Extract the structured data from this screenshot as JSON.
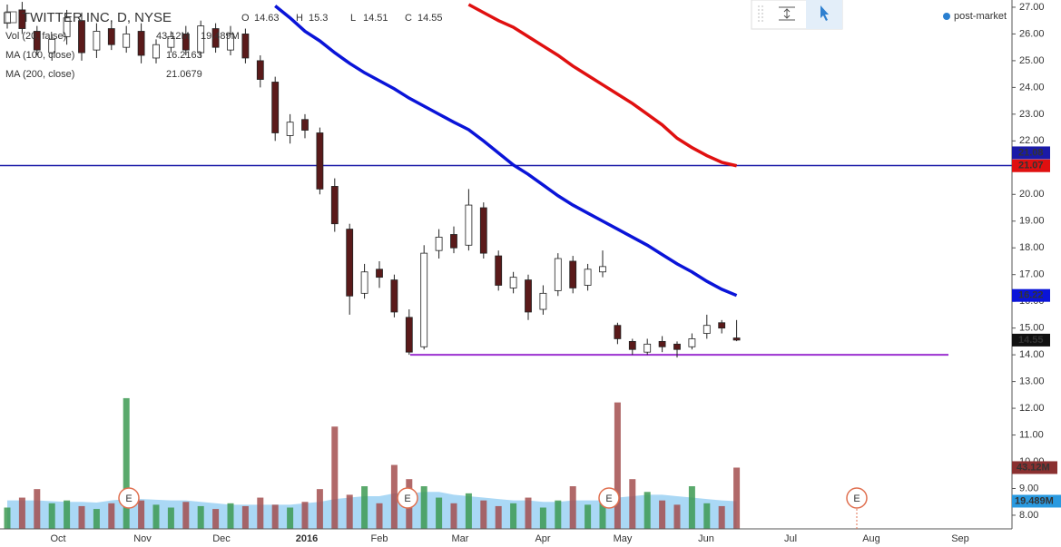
{
  "chart_data": {
    "type": "candlestick",
    "title": "TWITTER INC, D, NYSE",
    "ohlc_legend": [
      {
        "label": "O",
        "value": 14.63
      },
      {
        "label": "H",
        "value": 15.3
      },
      {
        "label": "L",
        "value": 14.51
      },
      {
        "label": "C",
        "value": 14.55
      }
    ],
    "open": [
      26.4,
      26.9,
      26.1,
      25.3,
      25.9,
      26.5,
      25.4,
      26.2,
      25.5,
      26.1,
      25.1,
      25.5,
      26.0,
      25.3,
      26.2,
      25.4,
      26.0,
      25.0,
      24.2,
      22.2,
      22.8,
      22.3,
      20.3,
      18.7,
      16.3,
      17.2,
      16.8,
      15.4,
      14.3,
      17.9,
      18.5,
      18.1,
      19.5,
      17.7,
      16.5,
      16.8,
      15.7,
      16.4,
      17.5,
      16.6,
      17.1,
      15.1,
      14.5,
      14.1,
      14.5,
      14.4,
      14.3,
      14.8,
      15.2,
      14.63
    ],
    "high": [
      27.1,
      27.2,
      26.3,
      26.0,
      26.9,
      26.8,
      26.4,
      26.5,
      26.3,
      26.4,
      25.8,
      26.1,
      26.3,
      26.5,
      26.4,
      26.3,
      26.2,
      25.2,
      24.4,
      23.0,
      23.0,
      22.5,
      20.6,
      18.9,
      17.4,
      17.5,
      17.0,
      15.7,
      18.1,
      18.7,
      18.8,
      20.2,
      19.7,
      17.9,
      17.1,
      17.0,
      16.6,
      17.8,
      17.7,
      17.4,
      17.9,
      15.2,
      14.6,
      14.6,
      14.7,
      14.5,
      14.8,
      15.5,
      15.3,
      15.3
    ],
    "low": [
      26.2,
      26.0,
      25.2,
      25.0,
      25.6,
      25.0,
      25.1,
      25.4,
      25.3,
      24.9,
      24.9,
      25.3,
      25.2,
      25.1,
      25.3,
      25.2,
      24.9,
      24.0,
      22.0,
      21.9,
      22.1,
      20.0,
      18.6,
      15.5,
      16.1,
      16.5,
      15.4,
      14.0,
      14.2,
      17.6,
      17.8,
      17.9,
      17.6,
      16.4,
      16.3,
      15.3,
      15.5,
      16.2,
      16.3,
      16.4,
      16.9,
      14.4,
      14.0,
      14.0,
      14.1,
      13.9,
      14.2,
      14.6,
      14.8,
      14.51
    ],
    "close": [
      26.8,
      26.2,
      25.4,
      25.8,
      26.6,
      25.3,
      26.1,
      25.6,
      26.0,
      25.2,
      25.6,
      25.9,
      25.4,
      26.3,
      25.5,
      26.0,
      25.1,
      24.3,
      22.3,
      22.7,
      22.4,
      20.2,
      18.9,
      16.2,
      17.1,
      16.9,
      15.6,
      14.1,
      17.8,
      18.4,
      18.0,
      19.6,
      17.8,
      16.6,
      16.9,
      15.6,
      16.3,
      17.6,
      16.5,
      17.2,
      17.3,
      14.6,
      14.2,
      14.4,
      14.3,
      14.2,
      14.6,
      15.1,
      15.0,
      14.55
    ],
    "volume": {
      "name": "Vol (20, false)",
      "values": [
        15,
        22,
        28,
        18,
        20,
        16,
        14,
        18,
        92,
        20,
        17,
        15,
        19,
        16,
        14,
        18,
        16,
        22,
        17,
        15,
        19,
        28,
        72,
        24,
        30,
        18,
        45,
        35,
        30,
        22,
        18,
        25,
        20,
        16,
        18,
        22,
        15,
        20,
        30,
        17,
        19,
        89,
        35,
        26,
        20,
        17,
        30,
        18,
        16,
        43.12
      ],
      "value_label": "43.12M",
      "up_color": "#3d9a52",
      "down_color": "#a34f4f"
    },
    "volume_ma": {
      "values": [
        20,
        20,
        20,
        19.5,
        19,
        19,
        18.5,
        20,
        21,
        21,
        20.5,
        20,
        20,
        19,
        18,
        17,
        17,
        17,
        17,
        17,
        18,
        19,
        21,
        22,
        23,
        23,
        25,
        25,
        26,
        26,
        24,
        23,
        22,
        21,
        20,
        20,
        19,
        19,
        20,
        20,
        20,
        22,
        23,
        24,
        24,
        23,
        22,
        21,
        20,
        19.489
      ],
      "value_label": "19.489M",
      "color": "#8ecbf2"
    },
    "series": [
      {
        "name": "MA (100, close)",
        "legend_value": 16.2163,
        "color": "#0a14d8",
        "values": [
          null,
          null,
          null,
          null,
          null,
          null,
          null,
          null,
          null,
          null,
          null,
          null,
          null,
          null,
          null,
          null,
          null,
          null,
          27.05,
          26.6,
          26.1,
          25.74,
          25.3,
          24.9,
          24.55,
          24.25,
          23.95,
          23.6,
          23.3,
          23.0,
          22.7,
          22.42,
          22.0,
          21.55,
          21.1,
          20.75,
          20.35,
          19.95,
          19.6,
          19.3,
          19.0,
          18.7,
          18.4,
          18.1,
          17.75,
          17.4,
          17.1,
          16.75,
          16.45,
          16.22
        ]
      },
      {
        "name": "MA (200, close)",
        "legend_value": 21.0679,
        "color": "#e01010",
        "values": [
          null,
          null,
          null,
          null,
          null,
          null,
          null,
          null,
          null,
          null,
          null,
          null,
          null,
          null,
          null,
          null,
          null,
          null,
          null,
          null,
          null,
          null,
          null,
          null,
          null,
          null,
          null,
          null,
          null,
          null,
          null,
          27.1,
          26.8,
          26.5,
          26.25,
          25.9,
          25.55,
          25.2,
          24.8,
          24.45,
          24.1,
          23.75,
          23.4,
          23.0,
          22.6,
          22.1,
          21.75,
          21.45,
          21.2,
          21.07
        ]
      }
    ],
    "lines": [
      {
        "value": 21.08,
        "color": "#1a1aa8"
      },
      {
        "value": 14.0,
        "color": "#9b30d0"
      }
    ],
    "events": [
      "E",
      "E",
      "E",
      "E"
    ],
    "post_market": "post-market",
    "xticks": [
      "Oct",
      "Nov",
      "Dec",
      "2016",
      "Feb",
      "Mar",
      "Apr",
      "May",
      "Jun",
      "Jul",
      "Aug",
      "Sep"
    ],
    "ylim": [
      7.49,
      27.27
    ],
    "yticks": [
      {
        "value": 8,
        "label": "8.00"
      },
      {
        "value": 9,
        "label": "9.00"
      },
      {
        "value": 10,
        "label": "10.00"
      },
      {
        "value": 11,
        "label": "11.00"
      },
      {
        "value": 12,
        "label": "12.00"
      },
      {
        "value": 13,
        "label": "13.00"
      },
      {
        "value": 14,
        "label": "14.00"
      },
      {
        "value": 15,
        "label": "15.00"
      },
      {
        "value": 16,
        "label": "16.00"
      },
      {
        "value": 17,
        "label": "17.00"
      },
      {
        "value": 18,
        "label": "18.00"
      },
      {
        "value": 19,
        "label": "19.00"
      },
      {
        "value": 20,
        "label": "20.00"
      },
      {
        "value": 21,
        "label": "21.00"
      },
      {
        "value": 22,
        "label": "22.00"
      },
      {
        "value": 23,
        "label": "23.00"
      },
      {
        "value": 24,
        "label": "24.00"
      },
      {
        "value": 25,
        "label": "25.00"
      },
      {
        "value": 26,
        "label": "26.00"
      },
      {
        "value": 27,
        "label": "27.00"
      }
    ]
  }
}
